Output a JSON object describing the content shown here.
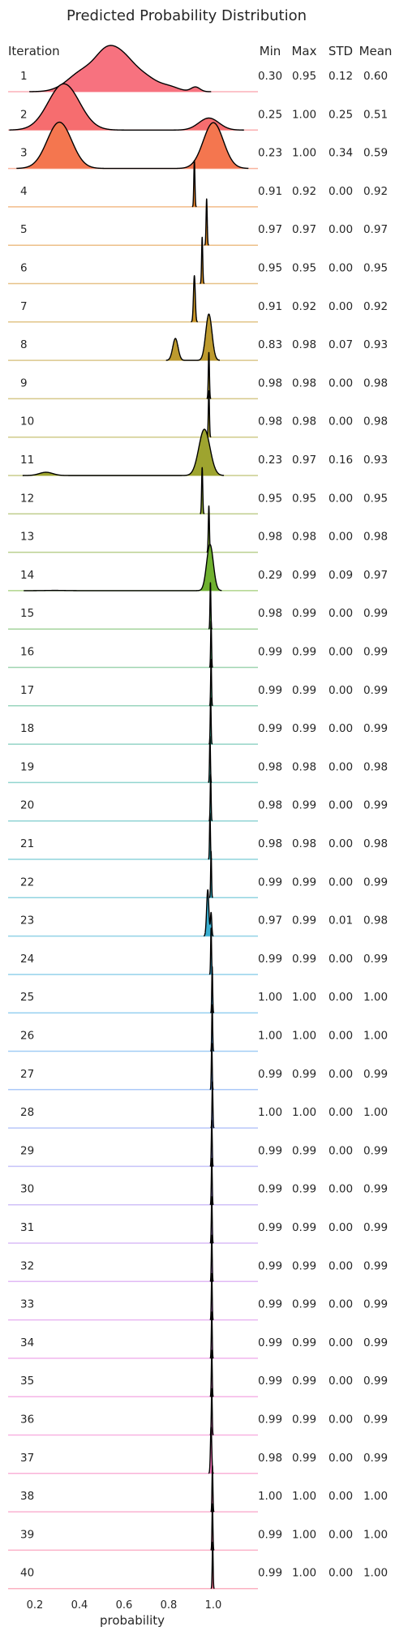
{
  "chart_data": {
    "type": "ridgeline",
    "title": "Predicted Probability Distribution",
    "row_header": "Iteration",
    "stat_headers": [
      "Min",
      "Max",
      "STD",
      "Mean"
    ],
    "xlabel": "probability",
    "xlim": [
      0.08,
      1.2
    ],
    "xticks": [
      0.2,
      0.4,
      0.6,
      0.8,
      1.0
    ],
    "xtick_labels": [
      "0.2",
      "0.4",
      "0.6",
      "0.8",
      "1.0"
    ],
    "rows": [
      {
        "label": "1",
        "color": "#f7727f",
        "min": "0.30",
        "max": "0.95",
        "std": "0.12",
        "mean": "0.60",
        "modes": [
          [
            0.42,
            0.07,
            0.7
          ],
          [
            0.52,
            0.05,
            0.95
          ],
          [
            0.6,
            0.055,
            1.0
          ],
          [
            0.7,
            0.05,
            0.4
          ],
          [
            0.8,
            0.045,
            0.17
          ],
          [
            0.92,
            0.02,
            0.16
          ]
        ]
      },
      {
        "label": "2",
        "color": "#f66d6f",
        "min": "0.25",
        "max": "1.00",
        "std": "0.25",
        "mean": "0.51",
        "modes": [
          [
            0.33,
            0.07,
            1.0
          ],
          [
            0.98,
            0.045,
            0.26
          ]
        ]
      },
      {
        "label": "3",
        "color": "#f4764f",
        "min": "0.23",
        "max": "1.00",
        "std": "0.34",
        "mean": "0.59",
        "modes": [
          [
            0.31,
            0.055,
            1.0
          ],
          [
            1.0,
            0.045,
            0.99
          ]
        ]
      },
      {
        "label": "4",
        "color": "#e8842a",
        "min": "0.91",
        "max": "0.92",
        "std": "0.00",
        "mean": "0.92",
        "modes": [
          [
            0.915,
            0.0025,
            1.0
          ]
        ]
      },
      {
        "label": "5",
        "color": "#dd8c27",
        "min": "0.97",
        "max": "0.97",
        "std": "0.00",
        "mean": "0.97",
        "modes": [
          [
            0.97,
            0.0025,
            1.0
          ]
        ]
      },
      {
        "label": "6",
        "color": "#d49127",
        "min": "0.95",
        "max": "0.95",
        "std": "0.00",
        "mean": "0.95",
        "modes": [
          [
            0.95,
            0.0025,
            1.0
          ]
        ]
      },
      {
        "label": "7",
        "color": "#c99627",
        "min": "0.91",
        "max": "0.92",
        "std": "0.00",
        "mean": "0.92",
        "modes": [
          [
            0.915,
            0.004,
            1.0
          ]
        ]
      },
      {
        "label": "8",
        "color": "#bd9a2e",
        "min": "0.83",
        "max": "0.98",
        "std": "0.07",
        "mean": "0.93",
        "modes": [
          [
            0.83,
            0.012,
            0.45
          ],
          [
            0.98,
            0.014,
            0.95
          ]
        ]
      },
      {
        "label": "9",
        "color": "#b39d2c",
        "min": "0.98",
        "max": "0.98",
        "std": "0.00",
        "mean": "0.98",
        "modes": [
          [
            0.98,
            0.0025,
            1.0
          ]
        ]
      },
      {
        "label": "10",
        "color": "#aaa12c",
        "min": "0.98",
        "max": "0.98",
        "std": "0.00",
        "mean": "0.98",
        "modes": [
          [
            0.98,
            0.0025,
            1.0
          ]
        ]
      },
      {
        "label": "11",
        "color": "#9ea42f",
        "min": "0.23",
        "max": "0.97",
        "std": "0.16",
        "mean": "0.93",
        "modes": [
          [
            0.25,
            0.03,
            0.07
          ],
          [
            0.96,
            0.025,
            1.0
          ]
        ]
      },
      {
        "label": "12",
        "color": "#90a834",
        "min": "0.95",
        "max": "0.95",
        "std": "0.00",
        "mean": "0.95",
        "modes": [
          [
            0.95,
            0.0025,
            1.0
          ]
        ]
      },
      {
        "label": "13",
        "color": "#82ab34",
        "min": "0.98",
        "max": "0.98",
        "std": "0.00",
        "mean": "0.98",
        "modes": [
          [
            0.98,
            0.0025,
            1.0
          ]
        ]
      },
      {
        "label": "14",
        "color": "#6fb12f",
        "min": "0.29",
        "max": "0.99",
        "std": "0.09",
        "mean": "0.97",
        "modes": [
          [
            0.29,
            0.04,
            0.005
          ],
          [
            0.985,
            0.015,
            1.0
          ]
        ]
      },
      {
        "label": "15",
        "color": "#5cb24f",
        "min": "0.98",
        "max": "0.99",
        "std": "0.00",
        "mean": "0.99",
        "modes": [
          [
            0.987,
            0.002,
            1.0
          ]
        ]
      },
      {
        "label": "16",
        "color": "#50b470",
        "min": "0.99",
        "max": "0.99",
        "std": "0.00",
        "mean": "0.99",
        "modes": [
          [
            0.99,
            0.002,
            1.0
          ]
        ]
      },
      {
        "label": "17",
        "color": "#47b48a",
        "min": "0.99",
        "max": "0.99",
        "std": "0.00",
        "mean": "0.99",
        "modes": [
          [
            0.99,
            0.002,
            1.0
          ]
        ]
      },
      {
        "label": "18",
        "color": "#40b49b",
        "min": "0.99",
        "max": "0.99",
        "std": "0.00",
        "mean": "0.99",
        "modes": [
          [
            0.988,
            0.002,
            1.0
          ]
        ]
      },
      {
        "label": "19",
        "color": "#3bb3a8",
        "min": "0.98",
        "max": "0.98",
        "std": "0.00",
        "mean": "0.98",
        "modes": [
          [
            0.985,
            0.002,
            1.0
          ]
        ]
      },
      {
        "label": "20",
        "color": "#38b2b3",
        "min": "0.98",
        "max": "0.99",
        "std": "0.00",
        "mean": "0.99",
        "modes": [
          [
            0.988,
            0.002,
            1.0
          ]
        ]
      },
      {
        "label": "21",
        "color": "#37b1bd",
        "min": "0.98",
        "max": "0.98",
        "std": "0.00",
        "mean": "0.98",
        "modes": [
          [
            0.985,
            0.002,
            1.0
          ]
        ]
      },
      {
        "label": "22",
        "color": "#39b0c7",
        "min": "0.99",
        "max": "0.99",
        "std": "0.00",
        "mean": "0.99",
        "modes": [
          [
            0.99,
            0.002,
            1.0
          ]
        ]
      },
      {
        "label": "23",
        "color": "#3aafd1",
        "min": "0.97",
        "max": "0.99",
        "std": "0.01",
        "mean": "0.98",
        "modes": [
          [
            0.975,
            0.005,
            1.0
          ],
          [
            0.99,
            0.003,
            0.5
          ]
        ]
      },
      {
        "label": "24",
        "color": "#3eaedb",
        "min": "0.99",
        "max": "0.99",
        "std": "0.00",
        "mean": "0.99",
        "modes": [
          [
            0.99,
            0.002,
            1.0
          ]
        ]
      },
      {
        "label": "25",
        "color": "#45abe5",
        "min": "1.00",
        "max": "1.00",
        "std": "0.00",
        "mean": "1.00",
        "modes": [
          [
            0.995,
            0.002,
            1.0
          ]
        ]
      },
      {
        "label": "26",
        "color": "#55a6ee",
        "min": "1.00",
        "max": "1.00",
        "std": "0.00",
        "mean": "1.00",
        "modes": [
          [
            0.995,
            0.002,
            1.0
          ]
        ]
      },
      {
        "label": "27",
        "color": "#6aa0f3",
        "min": "0.99",
        "max": "0.99",
        "std": "0.00",
        "mean": "0.99",
        "modes": [
          [
            0.993,
            0.002,
            1.0
          ]
        ]
      },
      {
        "label": "28",
        "color": "#819af5",
        "min": "1.00",
        "max": "1.00",
        "std": "0.00",
        "mean": "1.00",
        "modes": [
          [
            0.996,
            0.002,
            1.0
          ]
        ]
      },
      {
        "label": "29",
        "color": "#9893f5",
        "min": "0.99",
        "max": "0.99",
        "std": "0.00",
        "mean": "0.99",
        "modes": [
          [
            0.993,
            0.002,
            1.0
          ]
        ]
      },
      {
        "label": "30",
        "color": "#aa8df4",
        "min": "0.99",
        "max": "0.99",
        "std": "0.00",
        "mean": "0.99",
        "modes": [
          [
            0.993,
            0.002,
            1.0
          ]
        ]
      },
      {
        "label": "31",
        "color": "#bb87f2",
        "min": "0.99",
        "max": "0.99",
        "std": "0.00",
        "mean": "0.99",
        "modes": [
          [
            0.993,
            0.002,
            1.0
          ]
        ]
      },
      {
        "label": "32",
        "color": "#ca82ee",
        "min": "0.99",
        "max": "0.99",
        "std": "0.00",
        "mean": "0.99",
        "modes": [
          [
            0.993,
            0.002,
            1.0
          ]
        ]
      },
      {
        "label": "33",
        "color": "#d87de9",
        "min": "0.99",
        "max": "0.99",
        "std": "0.00",
        "mean": "0.99",
        "modes": [
          [
            0.993,
            0.002,
            1.0
          ]
        ]
      },
      {
        "label": "34",
        "color": "#e47ae0",
        "min": "0.99",
        "max": "0.99",
        "std": "0.00",
        "mean": "0.99",
        "modes": [
          [
            0.993,
            0.002,
            1.0
          ]
        ]
      },
      {
        "label": "35",
        "color": "#ed77d5",
        "min": "0.99",
        "max": "0.99",
        "std": "0.00",
        "mean": "0.99",
        "modes": [
          [
            0.993,
            0.002,
            1.0
          ]
        ]
      },
      {
        "label": "36",
        "color": "#f375c8",
        "min": "0.99",
        "max": "0.99",
        "std": "0.00",
        "mean": "0.99",
        "modes": [
          [
            0.993,
            0.002,
            1.0
          ]
        ]
      },
      {
        "label": "37",
        "color": "#f674ba",
        "min": "0.98",
        "max": "0.99",
        "std": "0.00",
        "mean": "0.99",
        "modes": [
          [
            0.99,
            0.003,
            1.0
          ]
        ]
      },
      {
        "label": "38",
        "color": "#f774ac",
        "min": "1.00",
        "max": "1.00",
        "std": "0.00",
        "mean": "1.00",
        "modes": [
          [
            0.996,
            0.002,
            1.0
          ]
        ]
      },
      {
        "label": "39",
        "color": "#f8739e",
        "min": "0.99",
        "max": "1.00",
        "std": "0.00",
        "mean": "1.00",
        "modes": [
          [
            0.996,
            0.002,
            1.0
          ]
        ]
      },
      {
        "label": "40",
        "color": "#f87390",
        "min": "0.99",
        "max": "1.00",
        "std": "0.00",
        "mean": "1.00",
        "modes": [
          [
            0.997,
            0.002,
            1.0
          ]
        ]
      }
    ]
  }
}
